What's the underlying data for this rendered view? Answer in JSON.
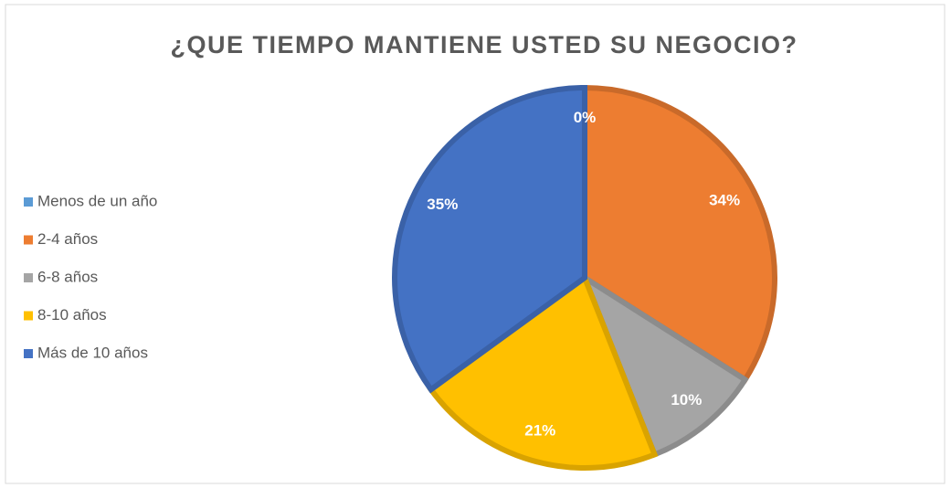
{
  "chart_data": {
    "type": "pie",
    "title": "¿QUE TIEMPO MANTIENE USTED SU NEGOCIO?",
    "categories": [
      "Menos de un año",
      "2-4 años",
      "6-8 años",
      "8-10 años",
      "Más de 10 años"
    ],
    "values": [
      0,
      34,
      10,
      21,
      35
    ],
    "value_labels": [
      "0%",
      "34%",
      "10%",
      "21%",
      "35%"
    ],
    "colors": [
      "#5B9BD5",
      "#ED7D31",
      "#A5A5A5",
      "#FFC000",
      "#4472C4"
    ],
    "legend": "left"
  }
}
